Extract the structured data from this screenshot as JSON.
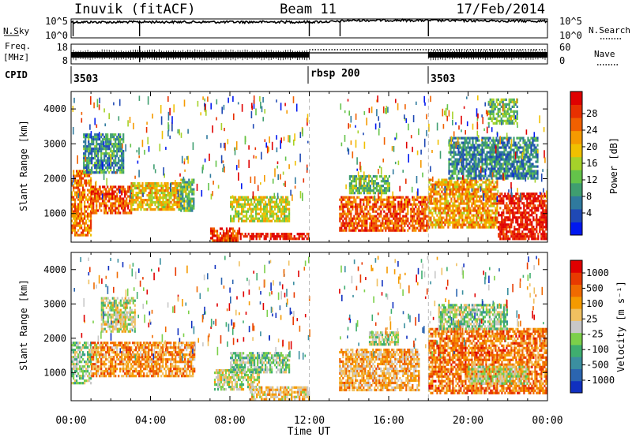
{
  "header": {
    "title_left": "Inuvik (fitACF)",
    "title_center": "Beam 11",
    "title_right": "17/Feb/2014"
  },
  "summary": {
    "nsky_label": "N.Sky",
    "nsky_ticks": [
      "10^5",
      "10^0"
    ],
    "nsearch_label": "N.Search",
    "nsearch_ticks": [
      "10^5",
      "10^0"
    ],
    "freq_label": "Freq.",
    "freq_unit": "[MHz]",
    "freq_ticks": [
      "18",
      "8"
    ],
    "nave_label": "Nave",
    "nave_ticks": [
      "60",
      "0"
    ],
    "cpid_label": "CPID",
    "cpid_segments": [
      {
        "label": "3503",
        "start_hour": 0,
        "end_hour": 12
      },
      {
        "label": "rbsp 200",
        "start_hour": 12,
        "end_hour": 18
      },
      {
        "label": "3503",
        "start_hour": 18,
        "end_hour": 24
      }
    ]
  },
  "axes": {
    "time_ticks": [
      "00:00",
      "04:00",
      "08:00",
      "12:00",
      "16:00",
      "20:00",
      "00:00"
    ],
    "xlabel": "Time UT",
    "ylabel": "Slant Range [km]",
    "range_ticks": [
      "1000",
      "2000",
      "3000",
      "4000"
    ]
  },
  "power_colorbar": {
    "label": "Power [dB]",
    "ticks": [
      "4",
      "8",
      "12",
      "16",
      "20",
      "24",
      "28"
    ],
    "colors": [
      "#0018f0",
      "#1f49b5",
      "#2f7a9e",
      "#3f9e70",
      "#64c34a",
      "#a5d22a",
      "#f0c000",
      "#f59a00",
      "#f06000",
      "#e83000",
      "#e00000"
    ]
  },
  "velocity_colorbar": {
    "label": "Velocity [m s⁻¹]",
    "ticks": [
      "1000",
      "500",
      "100",
      "25",
      "-25",
      "-100",
      "-500",
      "-1000"
    ],
    "colors": [
      "#1030c0",
      "#2b65b0",
      "#3b8fa0",
      "#3fae6f",
      "#7cd04a",
      "#c8c8c8",
      "#f0c060",
      "#f59a00",
      "#f06a00",
      "#e83a00",
      "#e00000"
    ]
  },
  "chart_data": [
    {
      "type": "line",
      "title": "N.Sky / N.Search",
      "x_unit": "hours UT",
      "xlim": [
        0,
        24
      ],
      "y_scale": "log",
      "ylim": [
        1,
        100000
      ],
      "series": [
        {
          "name": "N.Sky",
          "x": [
            0,
            2,
            4,
            6,
            8,
            10,
            12,
            13.5,
            14,
            16,
            18,
            20,
            22,
            24
          ],
          "y": [
            15000,
            14000,
            16000,
            15000,
            15000,
            16000,
            16000,
            20000,
            40000,
            45000,
            40000,
            35000,
            30000,
            25000
          ]
        }
      ]
    },
    {
      "type": "line",
      "title": "Freq. / Nave",
      "x_unit": "hours UT",
      "xlim": [
        0,
        24
      ],
      "series": [
        {
          "name": "Freq.",
          "y_unit": "MHz",
          "ylim": [
            8,
            18
          ],
          "x": [
            0,
            12,
            12.01,
            18,
            18.01,
            24
          ],
          "y": [
            11,
            11,
            10.5,
            10.5,
            11,
            11
          ]
        },
        {
          "name": "Nave",
          "ylim": [
            0,
            60
          ],
          "x": [
            0,
            12,
            12.01,
            18,
            18.01,
            24
          ],
          "y": [
            20,
            20,
            30,
            30,
            20,
            20
          ]
        }
      ]
    },
    {
      "type": "heatmap",
      "title": "Power",
      "x_unit": "hours UT",
      "xlim": [
        0,
        24
      ],
      "y_unit": "km",
      "ylim": [
        180,
        4500
      ],
      "zlim": [
        0,
        30
      ],
      "regions": [
        {
          "t": [
            0,
            1.0
          ],
          "r": [
            400,
            2250
          ],
          "z": 22
        },
        {
          "t": [
            1.0,
            3.0
          ],
          "r": [
            1000,
            1800
          ],
          "z": 24
        },
        {
          "t": [
            3.0,
            5.5
          ],
          "r": [
            1100,
            1900
          ],
          "z": 18
        },
        {
          "t": [
            5.5,
            6.2
          ],
          "r": [
            1100,
            2000
          ],
          "z": 12
        },
        {
          "t": [
            0.6,
            2.6
          ],
          "r": [
            2200,
            3300
          ],
          "z": 9
        },
        {
          "t": [
            7.0,
            8.5
          ],
          "r": [
            250,
            600
          ],
          "z": 26
        },
        {
          "t": [
            8.5,
            12.0
          ],
          "r": [
            250,
            450
          ],
          "z": 28
        },
        {
          "t": [
            8.0,
            11.0
          ],
          "r": [
            800,
            1500
          ],
          "z": 16
        },
        {
          "t": [
            13.5,
            18.0
          ],
          "r": [
            500,
            1500
          ],
          "z": 24
        },
        {
          "t": [
            14.0,
            16.0
          ],
          "r": [
            1600,
            2100
          ],
          "z": 12
        },
        {
          "t": [
            18.0,
            21.5
          ],
          "r": [
            600,
            2000
          ],
          "z": 20
        },
        {
          "t": [
            21.5,
            24.0
          ],
          "r": [
            300,
            1600
          ],
          "z": 28
        },
        {
          "t": [
            19.0,
            23.5
          ],
          "r": [
            2000,
            3200
          ],
          "z": 8
        },
        {
          "t": [
            21.0,
            22.5
          ],
          "r": [
            3600,
            4300
          ],
          "z": 12
        }
      ]
    },
    {
      "type": "heatmap",
      "title": "Velocity",
      "x_unit": "hours UT",
      "xlim": [
        0,
        24
      ],
      "y_unit": "km",
      "ylim": [
        180,
        4500
      ],
      "zlim": [
        -1000,
        1000
      ],
      "regions": [
        {
          "t": [
            0,
            1.0
          ],
          "r": [
            700,
            1900
          ],
          "z": 150
        },
        {
          "t": [
            1.0,
            6.2
          ],
          "r": [
            900,
            1900
          ],
          "z": -400
        },
        {
          "t": [
            1.5,
            3.2
          ],
          "r": [
            2200,
            3200
          ],
          "z": 0
        },
        {
          "t": [
            7.2,
            9.5
          ],
          "r": [
            500,
            1100
          ],
          "z": 0
        },
        {
          "t": [
            8.0,
            11.0
          ],
          "r": [
            1000,
            1600
          ],
          "z": 200
        },
        {
          "t": [
            9.0,
            12.0
          ],
          "r": [
            250,
            600
          ],
          "z": -200
        },
        {
          "t": [
            13.5,
            17.5
          ],
          "r": [
            500,
            1700
          ],
          "z": -300
        },
        {
          "t": [
            15.0,
            16.5
          ],
          "r": [
            1800,
            2200
          ],
          "z": 100
        },
        {
          "t": [
            18.0,
            24.0
          ],
          "r": [
            400,
            2300
          ],
          "z": -500
        },
        {
          "t": [
            20.0,
            23.0
          ],
          "r": [
            700,
            1200
          ],
          "z": 0
        },
        {
          "t": [
            18.5,
            22.0
          ],
          "r": [
            2300,
            3000
          ],
          "z": 150
        }
      ]
    }
  ]
}
